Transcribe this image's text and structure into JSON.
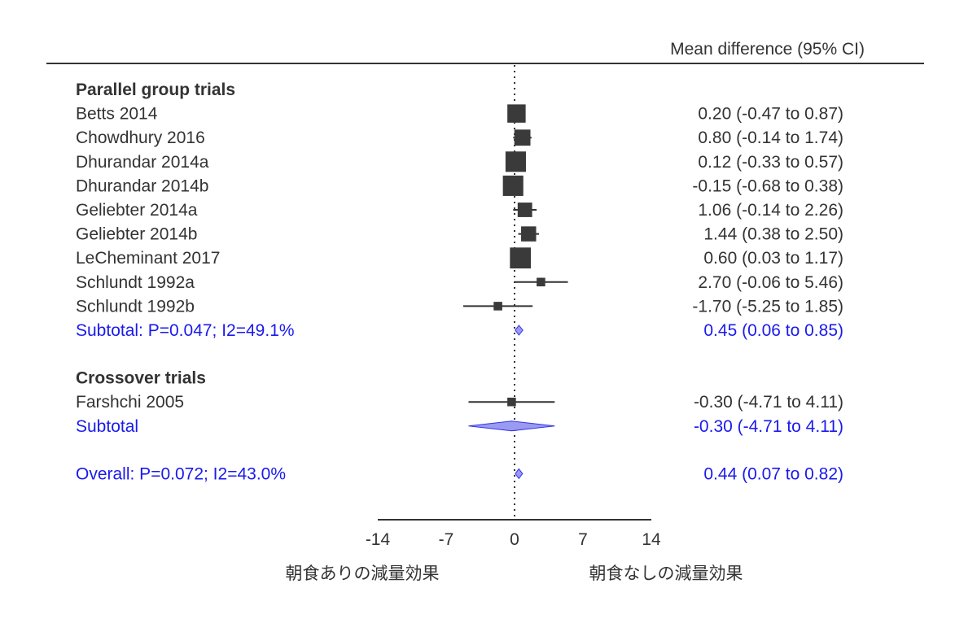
{
  "chart_data": {
    "type": "forest",
    "header": "Mean difference (95% CI)",
    "xlim": [
      -14,
      14
    ],
    "xticks": [
      "-14",
      "-7",
      "0",
      "7",
      "14"
    ],
    "reference_line": 0,
    "left_axis_label": "朝食ありの減量効果",
    "right_axis_label": "朝食なしの減量効果",
    "colors": {
      "text": "#333333",
      "marker": "#3a3a3a",
      "subtotal": "#1a1aee",
      "diamond_fill": "#9a9af0",
      "diamond_stroke": "#3333ee"
    },
    "groups": [
      {
        "title": "Parallel group trials",
        "studies": [
          {
            "name": "Betts 2014",
            "mean": 0.2,
            "lower": -0.47,
            "upper": 0.87,
            "weight": 3.4,
            "ci_text": "0.20 (-0.47 to 0.87)"
          },
          {
            "name": "Chowdhury 2016",
            "mean": 0.8,
            "lower": -0.14,
            "upper": 1.74,
            "weight": 3.0,
            "ci_text": "0.80 (-0.14 to 1.74)"
          },
          {
            "name": "Dhurandar 2014a",
            "mean": 0.12,
            "lower": -0.33,
            "upper": 0.57,
            "weight": 3.8,
            "ci_text": "0.12 (-0.33 to 0.57)"
          },
          {
            "name": "Dhurandar 2014b",
            "mean": -0.15,
            "lower": -0.68,
            "upper": 0.38,
            "weight": 3.8,
            "ci_text": "-0.15 (-0.68 to 0.38)"
          },
          {
            "name": "Geliebter 2014a",
            "mean": 1.06,
            "lower": -0.14,
            "upper": 2.26,
            "weight": 2.7,
            "ci_text": "1.06 (-0.14 to 2.26)"
          },
          {
            "name": "Geliebter 2014b",
            "mean": 1.44,
            "lower": 0.38,
            "upper": 2.5,
            "weight": 2.8,
            "ci_text": "1.44 (0.38 to 2.50)"
          },
          {
            "name": "LeCheminant 2017",
            "mean": 0.6,
            "lower": 0.03,
            "upper": 1.17,
            "weight": 3.9,
            "ci_text": "0.60 (0.03 to 1.17)"
          },
          {
            "name": "Schlundt 1992a",
            "mean": 2.7,
            "lower": -0.06,
            "upper": 5.46,
            "weight": 1.6,
            "ci_text": "2.70 (-0.06 to 5.46)"
          },
          {
            "name": "Schlundt 1992b",
            "mean": -1.7,
            "lower": -5.25,
            "upper": 1.85,
            "weight": 1.6,
            "ci_text": "-1.70 (-5.25 to 1.85)"
          }
        ],
        "subtotal": {
          "label": "Subtotal: P=0.047; I2=49.1%",
          "mean": 0.45,
          "lower": 0.06,
          "upper": 0.85,
          "ci_text": "0.45 (0.06 to 0.85)"
        }
      },
      {
        "title": "Crossover trials",
        "studies": [
          {
            "name": "Farshchi 2005",
            "mean": -0.3,
            "lower": -4.71,
            "upper": 4.11,
            "weight": 1.6,
            "ci_text": "-0.30 (-4.71 to 4.11)"
          }
        ],
        "subtotal": {
          "label": "Subtotal",
          "mean": -0.3,
          "lower": -4.71,
          "upper": 4.11,
          "ci_text": "-0.30 (-4.71 to 4.11)"
        }
      }
    ],
    "overall": {
      "label": "Overall: P=0.072; I2=43.0%",
      "mean": 0.44,
      "lower": 0.07,
      "upper": 0.82,
      "ci_text": "0.44 (0.07 to 0.82)"
    }
  }
}
